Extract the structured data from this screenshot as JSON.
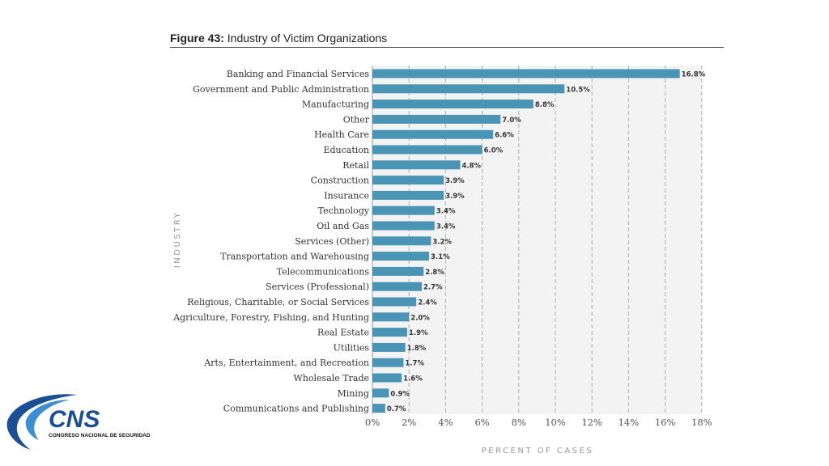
{
  "figure": {
    "label": "Figure 43:",
    "title": "Industry of Victim Organizations"
  },
  "logo": {
    "name": "CNS",
    "subtitle": "CONGRESO NACIONAL DE SEGURIDAD",
    "colors": {
      "blue": "#1a4f95",
      "light_blue": "#3c8fd0"
    }
  },
  "colors": {
    "bar": "#4a95b5",
    "plot_bg": "#f3f3f3",
    "grid": "#b0b0b0"
  },
  "chart_data": {
    "type": "bar",
    "orientation": "horizontal",
    "title": "Industry of Victim Organizations",
    "xlabel": "PERCENT OF CASES",
    "ylabel": "INDUSTRY",
    "xlim": [
      0,
      18
    ],
    "xticks": [
      0,
      2,
      4,
      6,
      8,
      10,
      12,
      14,
      16,
      18
    ],
    "xtick_labels": [
      "0%",
      "2%",
      "4%",
      "6%",
      "8%",
      "10%",
      "12%",
      "14%",
      "16%",
      "18%"
    ],
    "grid": "vertical dashed",
    "categories": [
      "Banking and Financial Services",
      "Government and Public Administration",
      "Manufacturing",
      "Other",
      "Health Care",
      "Education",
      "Retail",
      "Construction",
      "Insurance",
      "Technology",
      "Oil and Gas",
      "Services (Other)",
      "Transportation and Warehousing",
      "Telecommunications",
      "Services (Professional)",
      "Religious, Charitable, or Social Services",
      "Agriculture, Forestry, Fishing, and Hunting",
      "Real Estate",
      "Utilities",
      "Arts, Entertainment, and Recreation",
      "Wholesale Trade",
      "Mining",
      "Communications and Publishing"
    ],
    "values": [
      16.8,
      10.5,
      8.8,
      7.0,
      6.6,
      6.0,
      4.8,
      3.9,
      3.9,
      3.4,
      3.4,
      3.2,
      3.1,
      2.8,
      2.7,
      2.4,
      2.0,
      1.9,
      1.8,
      1.7,
      1.6,
      0.9,
      0.7
    ],
    "value_labels": [
      "16.8%",
      "10.5%",
      "8.8%",
      "7.0%",
      "6.6%",
      "6.0%",
      "4.8%",
      "3.9%",
      "3.9%",
      "3.4%",
      "3.4%",
      "3.2%",
      "3.1%",
      "2.8%",
      "2.7%",
      "2.4%",
      "2.0%",
      "1.9%",
      "1.8%",
      "1.7%",
      "1.6%",
      "0.9%",
      "0.7%"
    ]
  }
}
